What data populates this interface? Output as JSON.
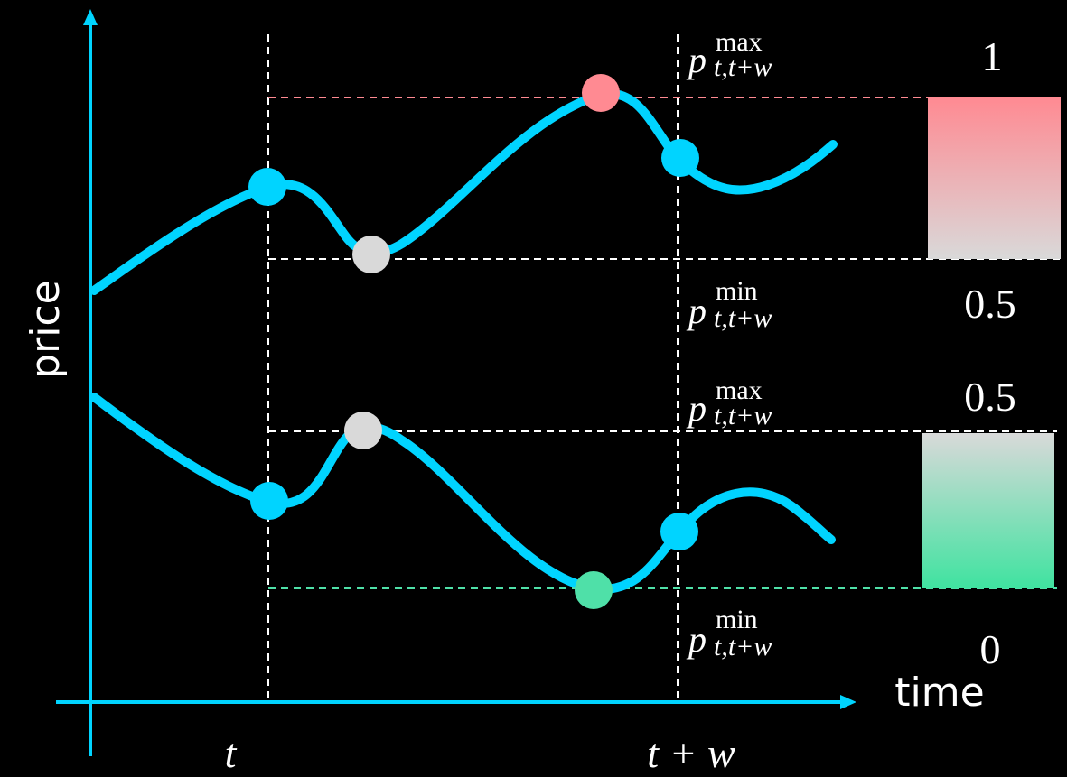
{
  "axes": {
    "y_label": "price",
    "x_label": "time",
    "tick_t": "t",
    "tick_tw": "t + w"
  },
  "labels": {
    "max_sup": "max",
    "min_sup": "min",
    "sub": "t,t+w",
    "base": "p"
  },
  "scale_values": {
    "upper_top": "1",
    "upper_bottom": "0.5",
    "lower_top": "0.5",
    "lower_bottom": "0"
  },
  "colors": {
    "background": "#000000",
    "curve": "#00d4ff",
    "max_point": "#ff8a92",
    "min_point": "#4fe0a8",
    "mid_point": "#d9d9d9",
    "guide": "#ffffff"
  }
}
